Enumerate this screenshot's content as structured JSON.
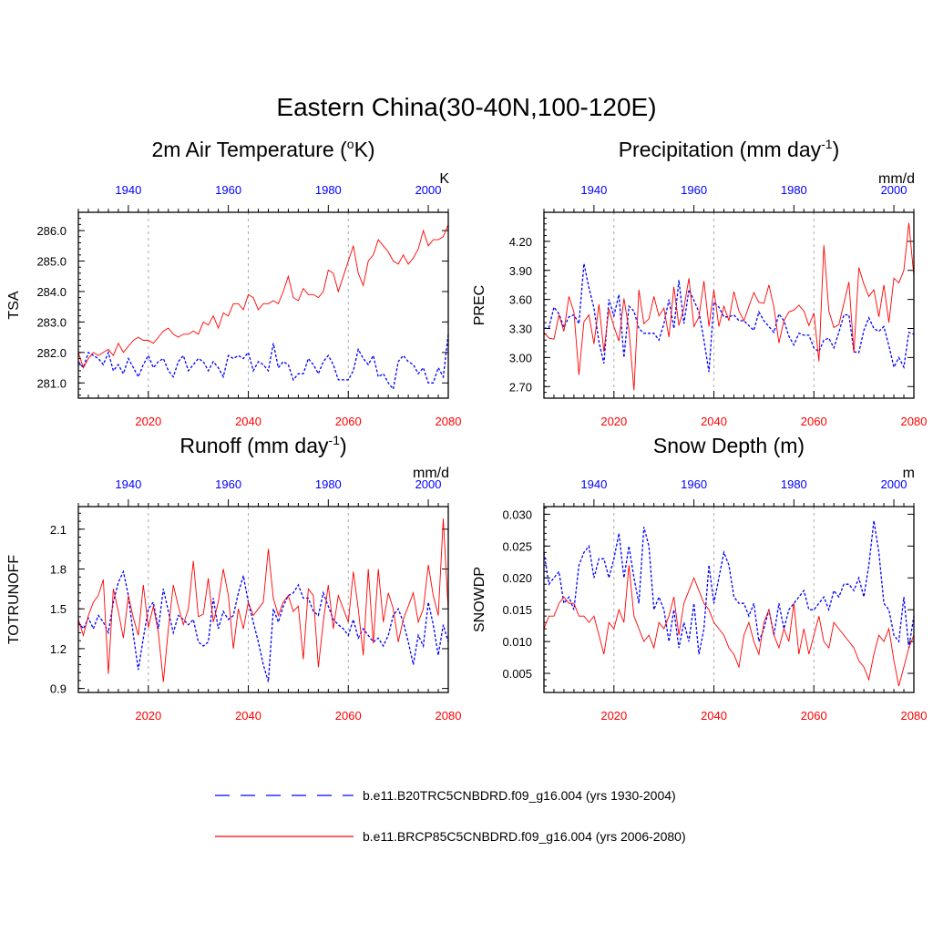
{
  "figure_title": "Eastern China(30-40N,100-120E)",
  "legend": {
    "historical": {
      "label": "b.e11.B20TRC5CNBDRD.f09_g16.004 (yrs 1930-2004)",
      "color": "#0000ff",
      "style": "dashed"
    },
    "future": {
      "label": "b.e11.BRCP85C5CNBDRD.f09_g16.004 (yrs 2006-2080)",
      "color": "#ff0000",
      "style": "solid"
    }
  },
  "colors": {
    "historical": "#0000ff",
    "future": "#ff0000",
    "gridline": "#aaaaaa",
    "axis": "#000000"
  },
  "chart_data": [
    {
      "id": "tsa",
      "type": "line",
      "title_main": "2m Air Temperature (",
      "title_sup_left": "o",
      "title_after": "K)",
      "title_sup_right": "",
      "title_tail": "",
      "ylabel": "TSA",
      "units": "K",
      "ylim": [
        280.5,
        286.6
      ],
      "yticks": [
        281.0,
        282.0,
        283.0,
        284.0,
        285.0,
        286.0
      ],
      "ytick_labels": [
        "281.0",
        "282.0",
        "283.0",
        "284.0",
        "285.0",
        "286.0"
      ],
      "bottom_axis": {
        "range": [
          2006,
          2080
        ],
        "ticks": [
          2020,
          2040,
          2060,
          2080
        ],
        "labels": [
          "2020",
          "2040",
          "2060",
          "2080"
        ]
      },
      "top_axis": {
        "range": [
          1930,
          2004
        ],
        "ticks": [
          1940,
          1960,
          1980,
          2000
        ],
        "labels": [
          "1940",
          "1960",
          "1980",
          "2000"
        ]
      },
      "series": [
        {
          "name": "historical",
          "values": [
            281.7,
            281.5,
            282.0,
            281.9,
            281.8,
            281.6,
            282.0,
            281.4,
            281.6,
            281.3,
            281.8,
            281.5,
            281.2,
            281.6,
            281.9,
            281.5,
            281.7,
            281.8,
            281.4,
            281.2,
            281.7,
            281.9,
            281.4,
            281.6,
            281.8,
            281.7,
            281.4,
            281.7,
            281.5,
            281.2,
            281.9,
            281.8,
            281.9,
            281.8,
            282.0,
            281.4,
            281.7,
            281.6,
            281.4,
            282.3,
            281.5,
            281.7,
            281.6,
            281.1,
            281.3,
            281.3,
            281.8,
            281.6,
            281.3,
            281.7,
            281.9,
            281.6,
            281.1,
            281.1,
            281.1,
            281.4,
            282.1,
            281.8,
            281.6,
            281.9,
            281.2,
            281.3,
            281.0,
            280.8,
            281.7,
            281.9,
            281.7,
            281.6,
            281.3,
            281.5,
            281.0,
            281.0,
            281.5,
            281.2,
            282.6
          ]
        },
        {
          "name": "future",
          "values": [
            282.0,
            281.5,
            281.8,
            282.0,
            281.9,
            282.0,
            282.1,
            281.9,
            282.3,
            282.0,
            282.2,
            282.4,
            282.5,
            282.4,
            282.4,
            282.3,
            282.5,
            282.7,
            282.8,
            282.6,
            282.5,
            282.6,
            282.6,
            282.7,
            282.6,
            283.0,
            282.9,
            283.2,
            282.8,
            283.3,
            283.2,
            283.6,
            283.6,
            283.4,
            283.9,
            283.8,
            283.4,
            283.6,
            283.6,
            283.7,
            283.6,
            284.0,
            284.5,
            283.8,
            283.7,
            284.1,
            283.9,
            283.9,
            283.8,
            284.0,
            284.7,
            284.6,
            284.0,
            284.5,
            285.0,
            285.5,
            284.6,
            284.2,
            285.0,
            285.2,
            285.7,
            285.5,
            285.3,
            285.0,
            284.9,
            285.2,
            284.9,
            285.1,
            285.4,
            286.0,
            285.5,
            285.7,
            285.7,
            285.8,
            286.2
          ]
        }
      ]
    },
    {
      "id": "prec",
      "type": "line",
      "title_main": "Precipitation (mm day",
      "title_sup_left": "",
      "title_after": "",
      "title_sup_right": "-1",
      "title_tail": ")",
      "ylabel": "PREC",
      "units": "mm/d",
      "ylim": [
        2.58,
        4.5
      ],
      "yticks": [
        2.7,
        3.0,
        3.3,
        3.6,
        3.9,
        4.2
      ],
      "ytick_labels": [
        "2.70",
        "3.00",
        "3.30",
        "3.60",
        "3.90",
        "4.20"
      ],
      "bottom_axis": {
        "range": [
          2006,
          2080
        ],
        "ticks": [
          2020,
          2040,
          2060,
          2080
        ],
        "labels": [
          "2020",
          "2040",
          "2060",
          "2080"
        ]
      },
      "top_axis": {
        "range": [
          1930,
          2004
        ],
        "ticks": [
          1940,
          1960,
          1980,
          2000
        ],
        "labels": [
          "1940",
          "1960",
          "1980",
          "2000"
        ]
      },
      "series": [
        {
          "name": "historical",
          "values": [
            3.3,
            3.31,
            3.52,
            3.45,
            3.31,
            3.42,
            3.44,
            3.35,
            3.97,
            3.72,
            3.51,
            3.16,
            2.94,
            3.6,
            3.43,
            3.65,
            3.0,
            3.53,
            3.48,
            3.3,
            3.25,
            3.25,
            3.25,
            3.18,
            3.35,
            3.6,
            3.3,
            3.8,
            3.35,
            3.7,
            3.59,
            3.47,
            3.18,
            2.85,
            3.57,
            3.52,
            3.42,
            3.42,
            3.44,
            3.38,
            3.38,
            3.33,
            3.28,
            3.47,
            3.38,
            3.32,
            3.26,
            3.45,
            3.38,
            3.22,
            3.13,
            3.25,
            3.23,
            3.23,
            3.1,
            3.06,
            3.18,
            3.2,
            3.1,
            3.26,
            3.44,
            3.44,
            3.06,
            3.05,
            3.28,
            3.41,
            3.3,
            3.27,
            3.32,
            3.12,
            2.9,
            3.0,
            2.9,
            3.26,
            3.24
          ]
        },
        {
          "name": "future",
          "values": [
            3.26,
            3.2,
            3.19,
            3.44,
            3.27,
            3.63,
            3.47,
            2.82,
            3.37,
            3.44,
            3.14,
            3.55,
            3.06,
            3.5,
            3.32,
            3.17,
            3.61,
            3.29,
            2.66,
            3.7,
            3.35,
            3.4,
            3.63,
            3.43,
            3.51,
            3.21,
            3.73,
            3.33,
            3.51,
            3.82,
            3.32,
            3.42,
            3.79,
            3.32,
            3.7,
            3.32,
            3.53,
            3.38,
            3.68,
            3.48,
            3.38,
            3.53,
            3.67,
            3.57,
            3.56,
            3.75,
            3.52,
            3.15,
            3.38,
            3.47,
            3.49,
            3.54,
            3.48,
            3.33,
            3.46,
            2.96,
            4.16,
            3.48,
            3.31,
            3.34,
            3.56,
            3.78,
            3.05,
            3.93,
            3.76,
            3.63,
            3.7,
            3.42,
            3.75,
            3.36,
            3.82,
            3.77,
            3.9,
            4.39,
            3.84
          ]
        }
      ]
    },
    {
      "id": "runoff",
      "type": "line",
      "title_main": "Runoff (mm day",
      "title_sup_left": "",
      "title_after": "",
      "title_sup_right": "-1",
      "title_tail": ")",
      "ylabel": "TOTRUNOFF",
      "units": "mm/d",
      "ylim": [
        0.87,
        2.27
      ],
      "yticks": [
        0.9,
        1.2,
        1.5,
        1.8,
        2.1
      ],
      "ytick_labels": [
        "0.9",
        "1.2",
        "1.5",
        "1.8",
        "2.1"
      ],
      "bottom_axis": {
        "range": [
          2006,
          2080
        ],
        "ticks": [
          2020,
          2040,
          2060,
          2080
        ],
        "labels": [
          "2020",
          "2040",
          "2060",
          "2080"
        ]
      },
      "top_axis": {
        "range": [
          1930,
          2004
        ],
        "ticks": [
          1940,
          1960,
          1980,
          2000
        ],
        "labels": [
          "1940",
          "1960",
          "1980",
          "2000"
        ]
      },
      "series": [
        {
          "name": "historical",
          "values": [
            1.4,
            1.35,
            1.43,
            1.35,
            1.45,
            1.4,
            1.32,
            1.55,
            1.7,
            1.78,
            1.6,
            1.3,
            1.04,
            1.28,
            1.5,
            1.55,
            1.35,
            1.65,
            1.48,
            1.32,
            1.45,
            1.42,
            1.38,
            1.42,
            1.25,
            1.22,
            1.25,
            1.58,
            1.35,
            1.48,
            1.42,
            1.45,
            1.62,
            1.75,
            1.55,
            1.4,
            1.25,
            1.08,
            0.95,
            1.5,
            1.4,
            1.52,
            1.6,
            1.62,
            1.68,
            1.58,
            1.58,
            1.48,
            1.45,
            1.62,
            1.52,
            1.42,
            1.38,
            1.35,
            1.3,
            1.42,
            1.28,
            1.35,
            1.3,
            1.25,
            1.28,
            1.22,
            1.3,
            1.45,
            1.5,
            1.4,
            1.25,
            1.08,
            1.3,
            1.22,
            1.55,
            1.38,
            1.15,
            1.38,
            1.25
          ]
        },
        {
          "name": "future",
          "values": [
            1.42,
            1.3,
            1.45,
            1.55,
            1.6,
            1.72,
            1.01,
            1.65,
            1.48,
            1.28,
            1.6,
            1.43,
            1.3,
            1.68,
            1.36,
            1.52,
            1.32,
            0.95,
            1.35,
            1.68,
            1.52,
            1.38,
            1.5,
            1.86,
            1.44,
            1.46,
            1.73,
            1.4,
            1.55,
            1.8,
            1.6,
            1.2,
            1.5,
            1.35,
            1.55,
            1.45,
            1.5,
            1.55,
            1.95,
            1.58,
            1.45,
            1.55,
            1.6,
            1.48,
            1.52,
            1.12,
            1.65,
            1.6,
            1.06,
            1.4,
            1.68,
            1.35,
            1.6,
            1.5,
            1.4,
            1.78,
            1.5,
            1.15,
            1.8,
            1.24,
            1.8,
            1.4,
            1.62,
            1.5,
            1.25,
            1.42,
            1.52,
            1.62,
            1.4,
            1.5,
            1.83,
            1.6,
            1.45,
            2.18,
            1.48
          ]
        }
      ]
    },
    {
      "id": "snowdp",
      "type": "line",
      "title_main": "Snow Depth (m)",
      "title_sup_left": "",
      "title_after": "",
      "title_sup_right": "",
      "title_tail": "",
      "ylabel": "SNOWDP",
      "units": "m",
      "ylim": [
        0.002,
        0.0312
      ],
      "yticks": [
        0.005,
        0.01,
        0.015,
        0.02,
        0.025,
        0.03
      ],
      "ytick_labels": [
        "0.005",
        "0.010",
        "0.015",
        "0.020",
        "0.025",
        "0.030"
      ],
      "bottom_axis": {
        "range": [
          2006,
          2080
        ],
        "ticks": [
          2020,
          2040,
          2060,
          2080
        ],
        "labels": [
          "2020",
          "2040",
          "2060",
          "2080"
        ]
      },
      "top_axis": {
        "range": [
          1930,
          2004
        ],
        "ticks": [
          1940,
          1960,
          1980,
          2000
        ],
        "labels": [
          "1940",
          "1960",
          "1980",
          "2000"
        ]
      },
      "series": [
        {
          "name": "historical",
          "values": [
            0.024,
            0.019,
            0.02,
            0.021,
            0.016,
            0.017,
            0.015,
            0.022,
            0.024,
            0.025,
            0.02,
            0.023,
            0.023,
            0.02,
            0.023,
            0.027,
            0.02,
            0.025,
            0.02,
            0.016,
            0.028,
            0.025,
            0.015,
            0.017,
            0.015,
            0.01,
            0.015,
            0.009,
            0.013,
            0.01,
            0.016,
            0.008,
            0.012,
            0.022,
            0.016,
            0.02,
            0.024,
            0.022,
            0.017,
            0.016,
            0.016,
            0.014,
            0.016,
            0.01,
            0.012,
            0.015,
            0.011,
            0.016,
            0.012,
            0.015,
            0.016,
            0.017,
            0.018,
            0.015,
            0.015,
            0.016,
            0.017,
            0.015,
            0.018,
            0.017,
            0.019,
            0.019,
            0.018,
            0.02,
            0.017,
            0.022,
            0.029,
            0.024,
            0.016,
            0.015,
            0.011,
            0.01,
            0.017,
            0.009,
            0.014
          ]
        },
        {
          "name": "future",
          "values": [
            0.012,
            0.014,
            0.014,
            0.016,
            0.017,
            0.016,
            0.016,
            0.014,
            0.014,
            0.013,
            0.014,
            0.011,
            0.008,
            0.013,
            0.012,
            0.015,
            0.013,
            0.022,
            0.014,
            0.012,
            0.01,
            0.011,
            0.009,
            0.013,
            0.012,
            0.014,
            0.017,
            0.011,
            0.016,
            0.018,
            0.02,
            0.018,
            0.016,
            0.015,
            0.013,
            0.012,
            0.011,
            0.009,
            0.008,
            0.006,
            0.011,
            0.013,
            0.01,
            0.008,
            0.013,
            0.015,
            0.011,
            0.009,
            0.012,
            0.01,
            0.016,
            0.008,
            0.012,
            0.008,
            0.011,
            0.014,
            0.01,
            0.009,
            0.013,
            0.012,
            0.011,
            0.01,
            0.009,
            0.007,
            0.006,
            0.004,
            0.008,
            0.011,
            0.01,
            0.012,
            0.007,
            0.003,
            0.006,
            0.009,
            0.011
          ]
        }
      ]
    }
  ]
}
